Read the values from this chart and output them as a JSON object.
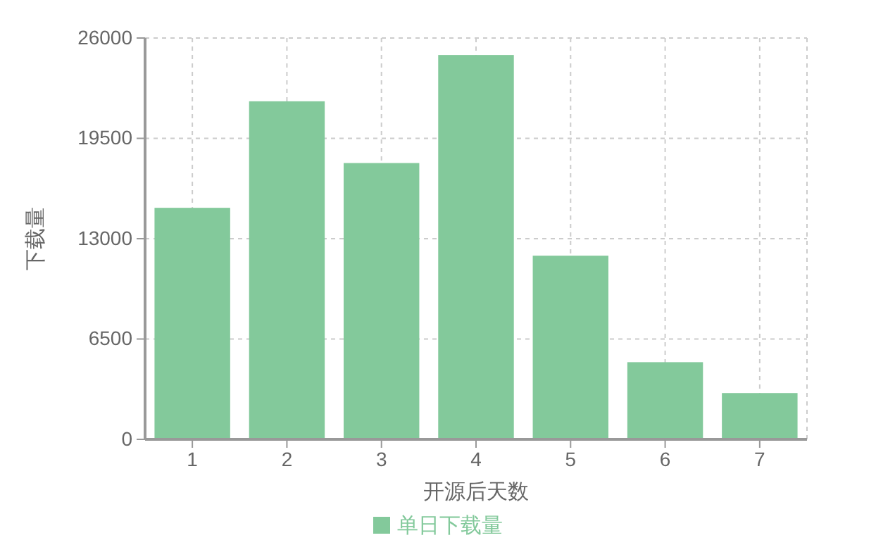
{
  "chart_data": {
    "type": "bar",
    "categories": [
      "1",
      "2",
      "3",
      "4",
      "5",
      "6",
      "7"
    ],
    "series": [
      {
        "name": "单日下载量",
        "color": "#83c99b",
        "values": [
          15000,
          21900,
          17900,
          24900,
          11900,
          5000,
          3000
        ]
      }
    ],
    "xlabel": "开源后天数",
    "ylabel": "下载量",
    "ylim": [
      0,
      26000
    ],
    "yticks": [
      0,
      6500,
      13000,
      19500,
      26000
    ],
    "grid": true,
    "legend": "bottom"
  }
}
